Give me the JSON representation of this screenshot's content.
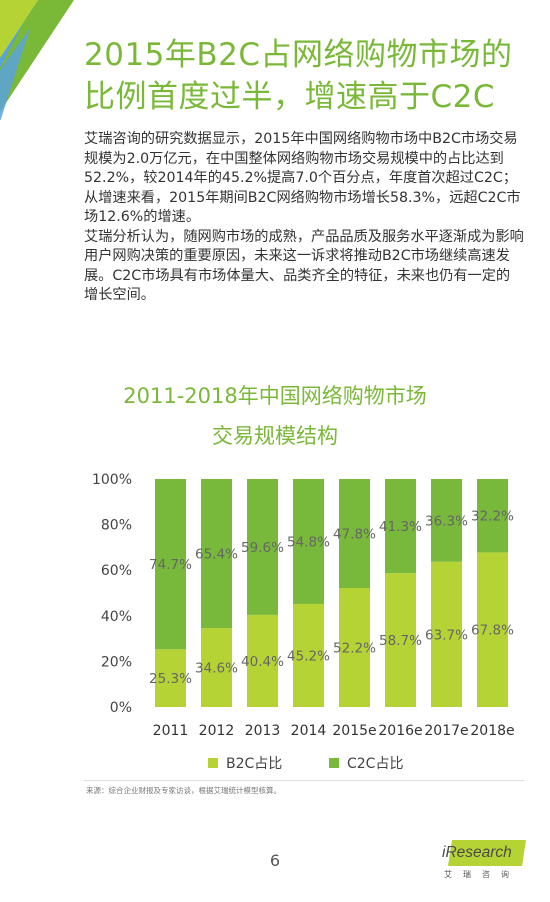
{
  "header": {
    "title_line1": "2015年B2C占网络购物市场的",
    "title_line2": "比例首度过半，增速高于C2C"
  },
  "body": {
    "para1": "艾瑞咨询的研究数据显示，2015年中国网络购物市场中B2C市场交易规模为2.0万亿元，在中国整体网络购物市场交易规模中的占比达到52.2%，较2014年的45.2%提高7.0个百分点，年度首次超过C2C；从增速来看，2015年期间B2C网络购物市场增长58.3%，远超C2C市场12.6%的增速。",
    "para2": "艾瑞分析认为，随网购市场的成熟，产品品质及服务水平逐渐成为影响用户网购决策的重要原因，未来这一诉求将推动B2C市场继续高速发展。C2C市场具有市场体量大、品类齐全的特征，未来也仍有一定的增长空间。"
  },
  "colors": {
    "accent": "#7ab838",
    "b2c": "#b5d334",
    "c2c": "#78b83a"
  },
  "chart_data": {
    "type": "bar",
    "stacked": true,
    "title_line1": "2011-2018年中国网络购物市场",
    "title_line2": "交易规模结构",
    "categories": [
      "2011",
      "2012",
      "2013",
      "2014",
      "2015e",
      "2016e",
      "2017e",
      "2018e"
    ],
    "series": [
      {
        "name": "B2C占比",
        "values": [
          25.3,
          34.6,
          40.4,
          45.2,
          52.2,
          58.7,
          63.7,
          67.8
        ],
        "labels": [
          "25.3%",
          "34.6%",
          "40.4%",
          "45.2%",
          "52.2%",
          "58.7%",
          "63.7%",
          "67.8%"
        ]
      },
      {
        "name": "C2C占比",
        "values": [
          74.7,
          65.4,
          59.6,
          54.8,
          47.8,
          41.3,
          36.3,
          32.2
        ],
        "labels": [
          "74.7%",
          "65.4%",
          "59.6%",
          "54.8%",
          "47.8%",
          "41.3%",
          "36.3%",
          "32.2%"
        ]
      }
    ],
    "y_ticks": [
      "0%",
      "20%",
      "40%",
      "60%",
      "80%",
      "100%"
    ],
    "ylim": [
      0,
      100
    ],
    "legend_position": "bottom",
    "grid": false
  },
  "footer": {
    "source": "来源：综合企业财报及专家访谈，根据艾瑞统计模型核算。",
    "page_number": "6",
    "logo_word": "iResearch",
    "logo_cn": "艾瑞咨询"
  }
}
